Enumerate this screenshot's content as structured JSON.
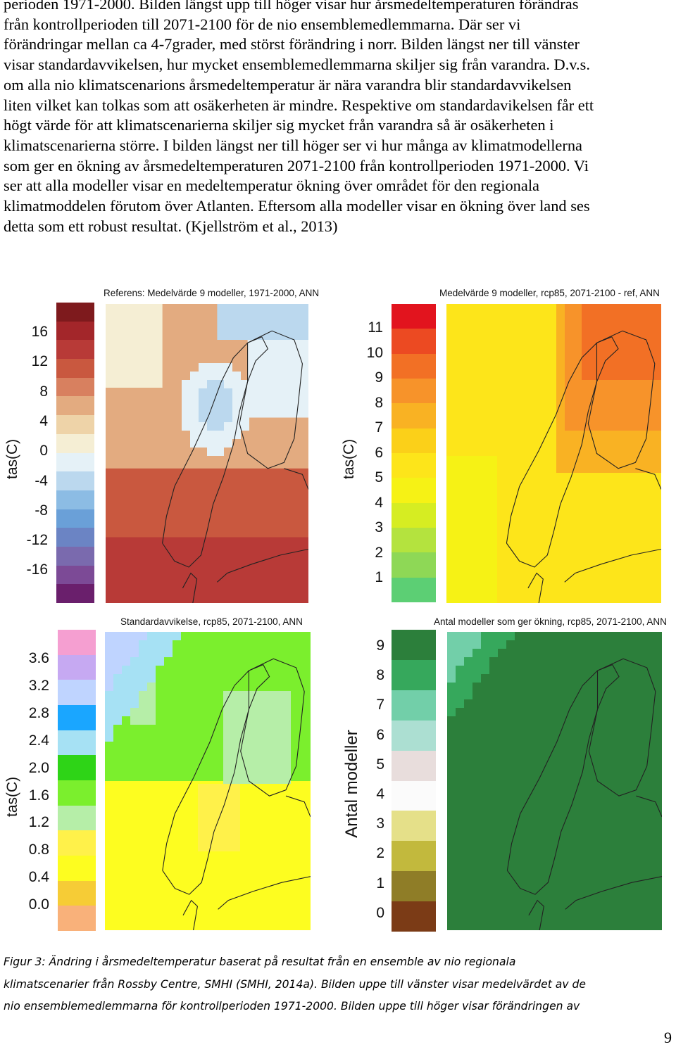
{
  "paragraph_lines": [
    "perioden 1971-2000. Bilden längst upp till höger visar hur årsmedeltemperaturen förändras",
    "från kontrollperioden till 2071-2100 för de nio ensemblemedlemmarna. Där ser vi",
    "förändringar mellan ca 4-7grader, med störst förändring i norr. Bilden längst ner till vänster",
    "visar standardavvikelsen, hur mycket ensemblemedlemmarna skiljer sig från varandra. D.v.s.",
    "om alla nio klimatscenarions årsmedeltemperatur är nära varandra blir standardavvikelsen",
    "liten vilket kan tolkas som att osäkerheten är mindre. Respektive om standardavikelsen får ett",
    "högt värde för att klimatscenarierna skiljer sig mycket från varandra så är osäkerheten i",
    "klimatscenarierna större. I bilden längst ner till höger ser vi hur många av klimatmodellerna",
    "som ger en ökning av årsmedeltemperaturen 2071-2100 från kontrollperioden 1971-2000. Vi",
    "ser att alla modeller visar en medeltemperatur ökning över området för den regionala",
    "klimatmoddelen förutom över Atlanten. Eftersom alla modeller visar en ökning över land ses",
    "detta som ett robust resultat. (Kjellström et al., 2013)"
  ],
  "figure": {
    "panels": [
      {
        "title": "Referens: Medelvärde 9 modeller, 1971-2000, ANN",
        "unit_label": "tas(C)",
        "ticks": [
          "16",
          "12",
          "8",
          "4",
          "0",
          "-4",
          "-8",
          "-12",
          "-16"
        ],
        "colors": [
          "#7e1a1d",
          "#a3262a",
          "#b83a37",
          "#c9583f",
          "#d8805f",
          "#e3ab80",
          "#eed3a8",
          "#f5eed4",
          "#e5f1f7",
          "#bbd8ee",
          "#8cbce4",
          "#6aa0d8",
          "#6b84c4",
          "#7a6aae",
          "#7c4a96",
          "#6a1f6c"
        ]
      },
      {
        "title": "Medelvärde 9 modeller, rcp85, 2071-2100 - ref, ANN",
        "unit_label": "tas(C)",
        "ticks": [
          "11",
          "10",
          "9",
          "8",
          "7",
          "6",
          "5",
          "4",
          "3",
          "2",
          "1"
        ],
        "colors": [
          "#e2141e",
          "#ec4a22",
          "#f27025",
          "#f7932a",
          "#f9b223",
          "#fbd019",
          "#fde51a",
          "#f6f215",
          "#d6ed22",
          "#b4e33e",
          "#8ed856",
          "#5ccf74"
        ]
      },
      {
        "title": "Standardavvikelse, rcp85, 2071-2100, ANN",
        "unit_label": "tas(C)",
        "ticks": [
          "3.6",
          "3.2",
          "2.8",
          "2.4",
          "2.0",
          "1.6",
          "1.2",
          "0.8",
          "0.4",
          "0.0"
        ],
        "colors": [
          "#f59fd1",
          "#c6a9f2",
          "#bfd4ff",
          "#1aa6ff",
          "#a6e1f4",
          "#2ed417",
          "#7bef2d",
          "#b6eea8",
          "#fff14a",
          "#fdfd20",
          "#f6cc36",
          "#f9b17a"
        ]
      },
      {
        "title": "Antal modeller som ger ökning, rcp85, 2071-2100, ANN",
        "unit_label": "Antal modeller",
        "ticks": [
          "9",
          "8",
          "7",
          "6",
          "5",
          "4",
          "3",
          "2",
          "1",
          "0"
        ],
        "colors": [
          "#2c7f3b",
          "#36a85c",
          "#72cfa9",
          "#acdfd2",
          "#e8dddc",
          "#fbfbfb",
          "#e5e089",
          "#c2b93d",
          "#8f7d27",
          "#7b3b16"
        ]
      }
    ]
  },
  "caption_lines": [
    "Figur 3: Ändring i årsmedeltemperatur baserat på resultat från en ensemble av nio regionala",
    "klimatscenarier från Rossby Centre, SMHI (SMHI, 2014a). Bilden uppe till vänster visar medelvärdet av de",
    "nio ensemblemedlemmarna för kontrollperioden 1971-2000. Bilden uppe till höger visar förändringen av"
  ],
  "page_number": "9"
}
